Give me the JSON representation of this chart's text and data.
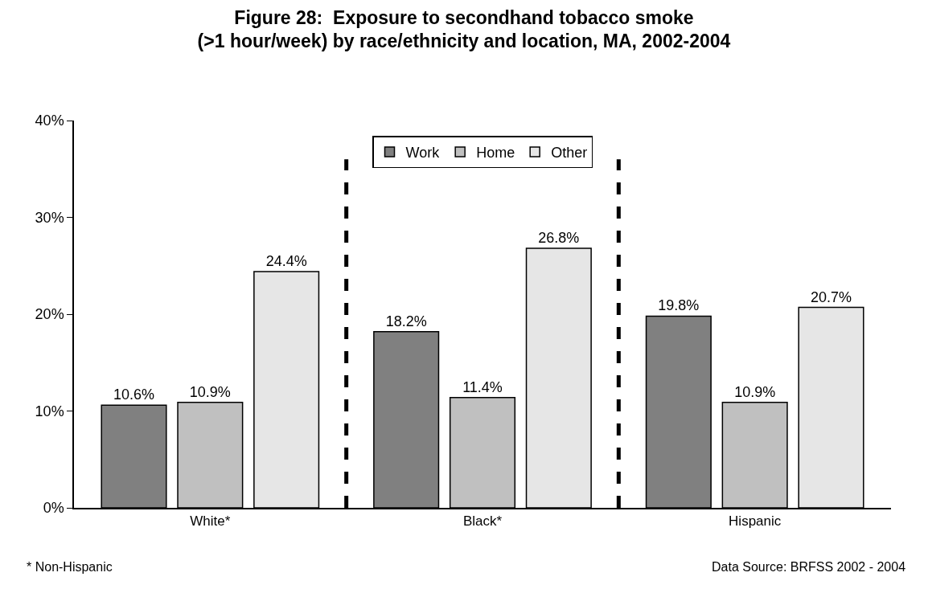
{
  "chart_data": {
    "type": "bar",
    "title": "Figure 28:  Exposure to secondhand tobacco smoke\n(>1 hour/week) by race/ethnicity and location, MA, 2002-2004",
    "categories": [
      "White*",
      "Black*",
      "Hispanic"
    ],
    "series": [
      {
        "name": "Work",
        "color": "#808080",
        "values": [
          10.6,
          18.2,
          19.8
        ],
        "value_labels": [
          "10.6%",
          "18.2%",
          "19.8%"
        ]
      },
      {
        "name": "Home",
        "color": "#c0c0c0",
        "values": [
          10.9,
          11.4,
          10.9
        ],
        "value_labels": [
          "10.9%",
          "11.4%",
          "10.9%"
        ]
      },
      {
        "name": "Other",
        "color": "#e6e6e6",
        "values": [
          24.4,
          26.8,
          20.7
        ],
        "value_labels": [
          "24.4%",
          "26.8%",
          "20.7%"
        ]
      }
    ],
    "ylim": [
      0,
      40
    ],
    "yticks": [
      {
        "value": 0,
        "label": "0%"
      },
      {
        "value": 10,
        "label": "10%"
      },
      {
        "value": 20,
        "label": "20%"
      },
      {
        "value": 30,
        "label": "30%"
      },
      {
        "value": 40,
        "label": "40%"
      }
    ],
    "grid": false,
    "legend": "top",
    "annotations": [
      "* Non-Hispanic",
      "Data Source: BRFSS 2002 - 2004"
    ]
  }
}
